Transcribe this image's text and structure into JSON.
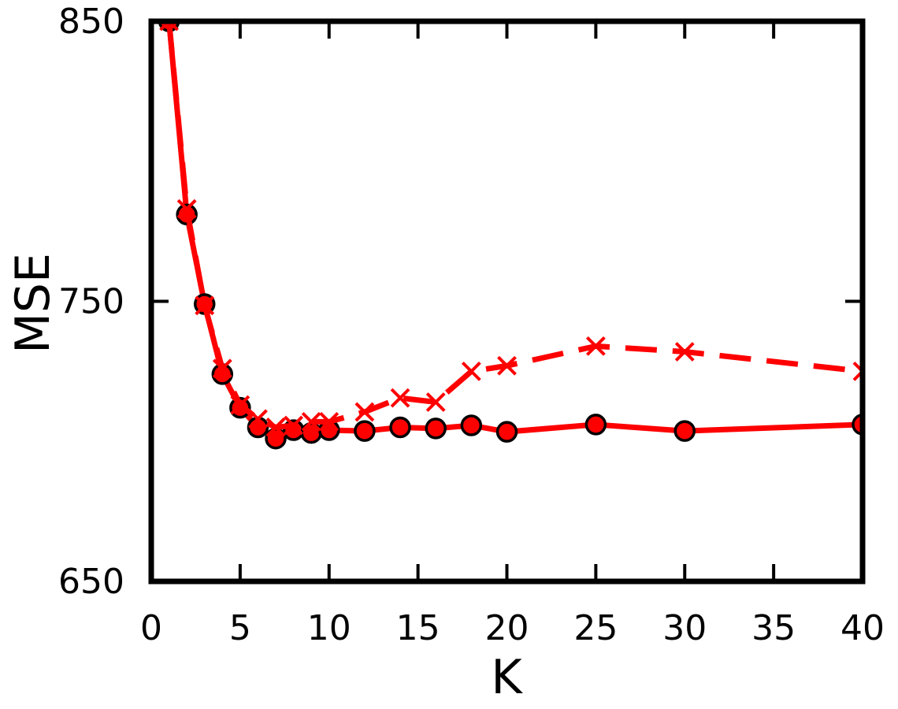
{
  "chart_data": {
    "type": "line",
    "xlabel": "K",
    "ylabel": "MSE",
    "x": [
      1,
      2,
      3,
      4,
      5,
      6,
      7,
      8,
      9,
      10,
      12,
      14,
      16,
      18,
      20,
      25,
      30,
      40
    ],
    "series": [
      {
        "color": "#ff0000",
        "linestyle": "solid",
        "marker": "o",
        "values": [
          850,
          781,
          749,
          724,
          712,
          705,
          701,
          704,
          703,
          704,
          703.7,
          705,
          704.6,
          705.7,
          703.4,
          706,
          703.7,
          706
        ]
      },
      {
        "color": "#ff0000",
        "linestyle": "dashed",
        "marker": "x",
        "values": [
          850,
          783,
          748.5,
          726,
          713,
          708,
          705,
          705.7,
          707,
          707,
          710.5,
          715.5,
          714,
          725,
          727,
          734,
          732,
          725
        ]
      }
    ],
    "xlim": [
      0,
      40
    ],
    "xticks": [
      0,
      5,
      10,
      15,
      20,
      25,
      30,
      35,
      40
    ],
    "ylim": [
      650,
      850
    ],
    "yticks": [
      650,
      750,
      850
    ]
  }
}
